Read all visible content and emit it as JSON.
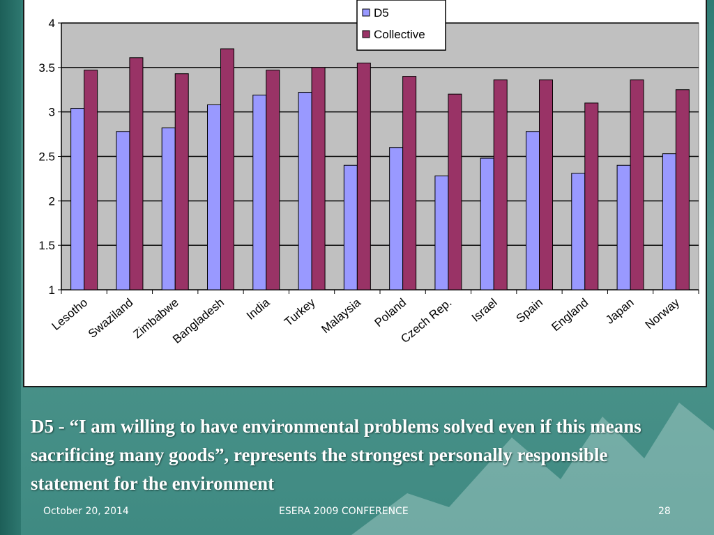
{
  "chart_data": {
    "type": "bar",
    "categories": [
      "Lesotho",
      "Swaziland",
      "Zimbabwe",
      "Bangladesh",
      "India",
      "Turkey",
      "Malaysia",
      "Poland",
      "Czech Rep.",
      "Israel",
      "Spain",
      "England",
      "Japan",
      "Norway"
    ],
    "series": [
      {
        "name": "D5",
        "color": "#9999ff",
        "values": [
          3.04,
          2.78,
          2.82,
          3.08,
          3.19,
          3.22,
          2.4,
          2.6,
          2.28,
          2.48,
          2.78,
          2.31,
          2.4,
          2.53
        ]
      },
      {
        "name": "Collective",
        "color": "#993366",
        "values": [
          3.47,
          3.61,
          3.43,
          3.71,
          3.47,
          3.5,
          3.55,
          3.4,
          3.2,
          3.36,
          3.36,
          3.1,
          3.36,
          3.25
        ]
      }
    ],
    "ylim": [
      1,
      4
    ],
    "yticks": [
      "1",
      "1.5",
      "2",
      "2.5",
      "3",
      "3.5",
      "4"
    ],
    "grid": true,
    "plot_background": "#c0c0c0",
    "legend_position": "top-right"
  },
  "caption": "D5 - “I am willing to have environmental problems solved even if this means sacrificing many goods”, represents the strongest personally responsible statement for the environment",
  "footer": {
    "date": "October 20, 2014",
    "conference": "ESERA 2009 CONFERENCE",
    "page": "28"
  }
}
